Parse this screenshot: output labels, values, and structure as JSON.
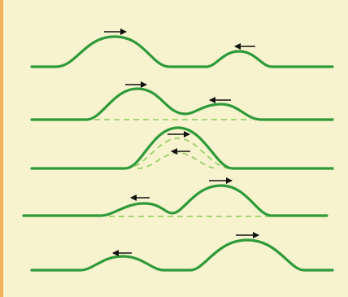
{
  "figure": {
    "description_free": true,
    "colors": {
      "background": "#f8f3cf",
      "left_border": "#f3b05c",
      "wave_solid": "#2e9a3a",
      "wave_dashed": "#9ccf6e",
      "arrow": "#111111"
    },
    "rows": [
      {
        "stage": 1,
        "pulses": [
          {
            "direction": "right",
            "size": "large"
          },
          {
            "direction": "left",
            "size": "small"
          }
        ]
      },
      {
        "stage": 2,
        "pulses": [
          {
            "direction": "right",
            "size": "large"
          },
          {
            "direction": "left",
            "size": "small"
          }
        ]
      },
      {
        "stage": 3,
        "pulses": [
          {
            "direction": "right",
            "size": "large"
          },
          {
            "direction": "left",
            "size": "small"
          }
        ]
      },
      {
        "stage": 4,
        "pulses": [
          {
            "direction": "left",
            "size": "small"
          },
          {
            "direction": "right",
            "size": "large"
          }
        ]
      },
      {
        "stage": 5,
        "pulses": [
          {
            "direction": "left",
            "size": "small"
          },
          {
            "direction": "right",
            "size": "large"
          }
        ]
      }
    ]
  }
}
